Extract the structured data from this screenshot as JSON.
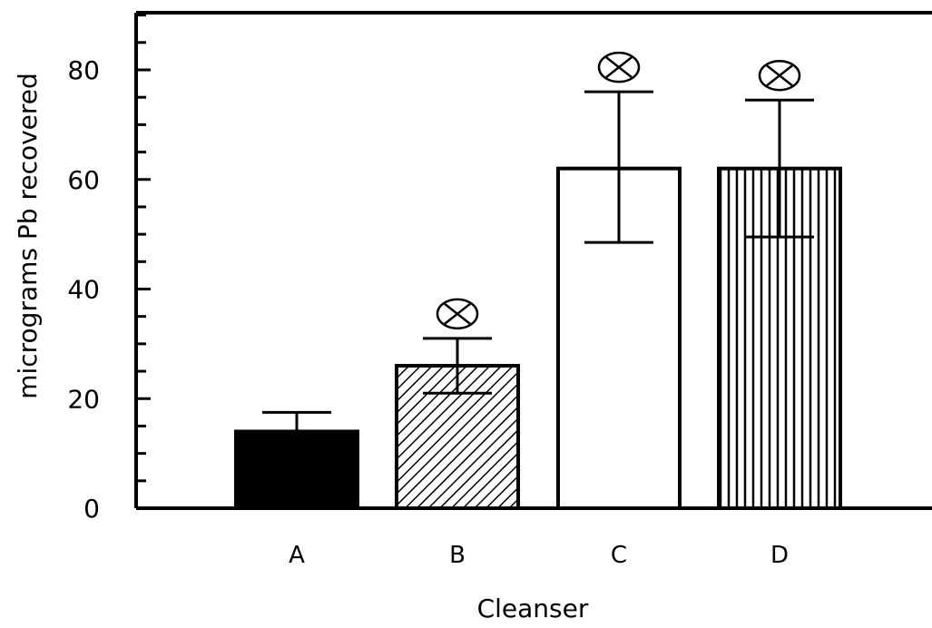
{
  "chart_data": {
    "type": "bar",
    "title": "",
    "xlabel": "Cleanser",
    "ylabel": "micrograms Pb recovered",
    "categories": [
      "A",
      "B",
      "C",
      "D"
    ],
    "values": [
      14,
      26,
      62,
      62
    ],
    "error_upper": [
      17.5,
      31,
      76,
      74.5
    ],
    "error_lower": [
      14,
      21,
      48.5,
      49.5
    ],
    "significance_marker": [
      false,
      true,
      true,
      true
    ],
    "bar_fill": [
      "solid-black",
      "diagonal-hatch",
      "white",
      "vertical-lines"
    ],
    "ylim": [
      0,
      90
    ],
    "yticks": [
      0,
      20,
      40,
      60,
      80
    ],
    "y_minor_step": 5,
    "grid": false,
    "legend": "none",
    "colors": {
      "axis": "#000000",
      "background": "#ffffff",
      "bar_outline": "#000000"
    }
  }
}
